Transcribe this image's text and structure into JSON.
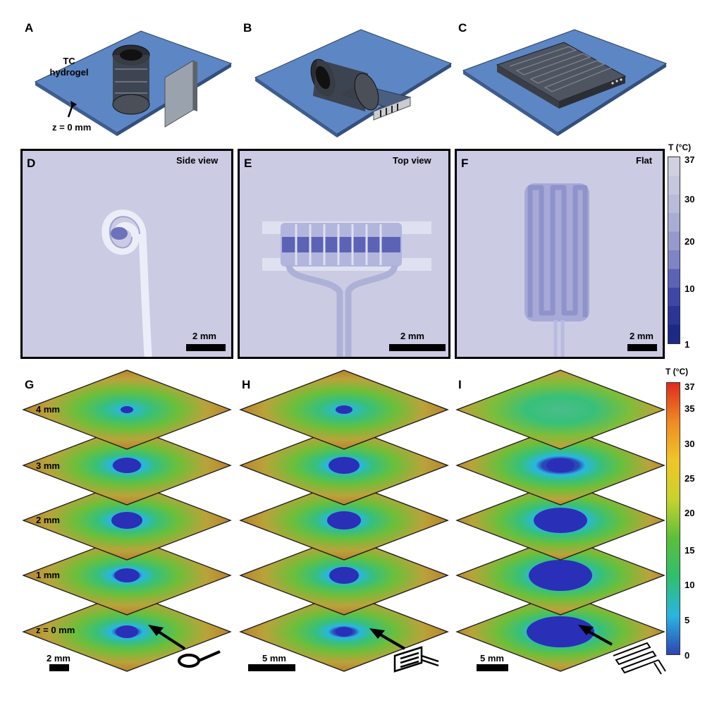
{
  "panels": {
    "A": {
      "label": "A",
      "tc_label": "TC\nhydrogel",
      "z_label": "z = 0 mm"
    },
    "B": {
      "label": "B"
    },
    "C": {
      "label": "C"
    },
    "D": {
      "label": "D",
      "title": "Side view",
      "scale": "2 mm"
    },
    "E": {
      "label": "E",
      "title": "Top view",
      "scale": "2 mm"
    },
    "F": {
      "label": "F",
      "title": "Flat",
      "scale": "2 mm"
    },
    "G": {
      "label": "G",
      "scale": "2 mm",
      "layers": [
        "4 mm",
        "3 mm",
        "2 mm",
        "1 mm",
        "z = 0 mm"
      ]
    },
    "H": {
      "label": "H",
      "scale": "5 mm"
    },
    "I": {
      "label": "I",
      "scale": "5 mm"
    }
  },
  "colorbar_top": {
    "title": "T (°C)",
    "ticks": [
      "37",
      "30",
      "20",
      "10",
      "1"
    ],
    "colors": [
      "#cfd0e0",
      "#c5c7dd",
      "#b9bbd9",
      "#a9acd3",
      "#9699cc",
      "#7f84c4",
      "#5c63b6",
      "#3e47a6",
      "#2a3596",
      "#1c2a86"
    ]
  },
  "colorbar_bottom": {
    "title": "T (°C)",
    "ticks": [
      "37",
      "35",
      "30",
      "25",
      "20",
      "15",
      "10",
      "5",
      "0"
    ],
    "colors": [
      "#2d45b5",
      "#29b6e0",
      "#2fbf6e",
      "#5bbf3a",
      "#c8d22c",
      "#f0c628",
      "#f08a22",
      "#e02a1e"
    ]
  }
}
